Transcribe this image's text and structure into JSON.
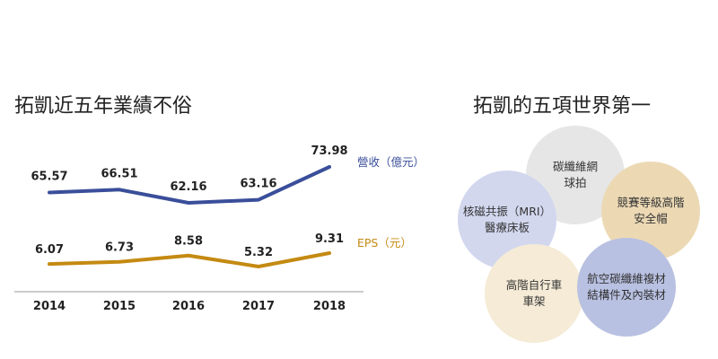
{
  "left_title": "拓凱近五年業績不俗",
  "right_title": "拓凱的五項世界第一",
  "chart_data": {
    "type": "line",
    "title": "拓凱近五年業績不俗",
    "categories": [
      "2014",
      "2015",
      "2016",
      "2017",
      "2018"
    ],
    "series": [
      {
        "name": "營收（億元）",
        "values": [
          65.57,
          66.51,
          62.16,
          63.16,
          73.98
        ],
        "labels": [
          "65.57",
          "66.51",
          "62.16",
          "63.16",
          "73.98"
        ],
        "color": "#3a4e9a"
      },
      {
        "name": "EPS（元）",
        "values": [
          6.07,
          6.73,
          8.58,
          5.32,
          9.31
        ],
        "labels": [
          "6.07",
          "6.73",
          "8.58",
          "5.32",
          "9.31"
        ],
        "color": "#c48a12"
      }
    ],
    "grid": false,
    "legend": "right-inline"
  },
  "bubbles": [
    {
      "line1": "碳纖維網",
      "line2": "球拍",
      "color": "#e6e6e6"
    },
    {
      "line1": "核磁共振（MRI）",
      "line2": "醫療床板",
      "color": "#d2d7ee"
    },
    {
      "line1": "競賽等級高階",
      "line2": "安全帽",
      "color": "#ecd9b4"
    },
    {
      "line1": "高階自行車",
      "line2": "車架",
      "color": "#f5ebd6"
    },
    {
      "line1": "航空碳纖維複材",
      "line2": "結構件及內裝材",
      "color": "#b9c1e2"
    }
  ]
}
